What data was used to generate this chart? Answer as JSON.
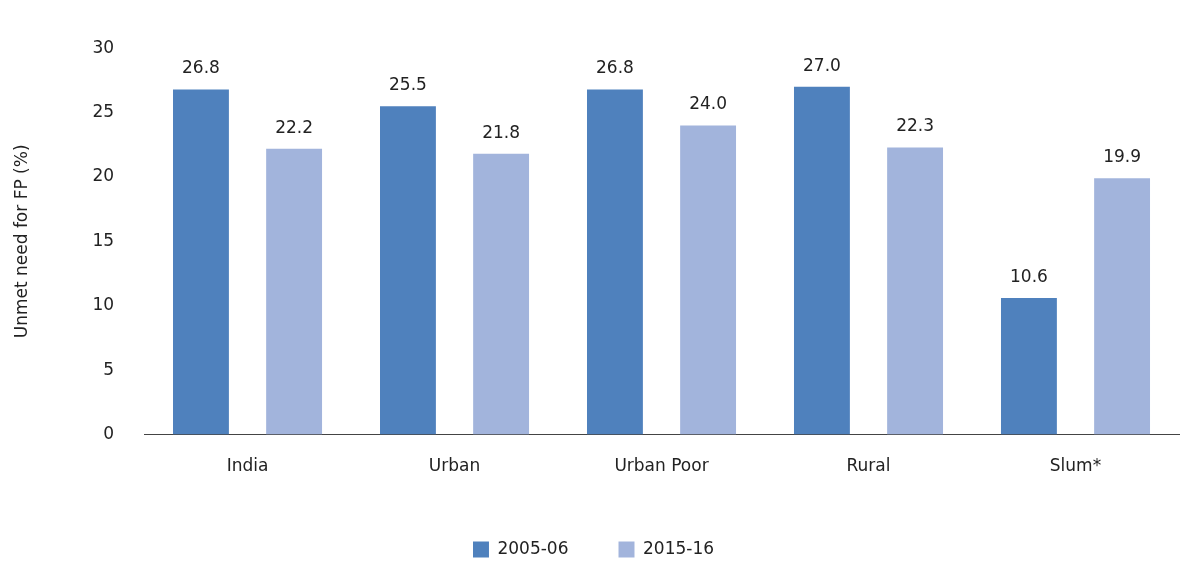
{
  "chart_data": {
    "type": "bar",
    "ylabel": "Unmet need for FP (%)",
    "categories": [
      "India",
      "Urban",
      "Urban Poor",
      "Rural",
      "Slum*"
    ],
    "series": [
      {
        "name": "2005-06",
        "color": "#4f81bd",
        "values": [
          26.8,
          25.5,
          26.8,
          27.0,
          10.6
        ],
        "value_labels": [
          "26.8",
          "25.5",
          "26.8",
          "27.0",
          "10.6"
        ]
      },
      {
        "name": "2015-16",
        "color": "#a2b4dc",
        "values": [
          22.2,
          21.8,
          24.0,
          22.3,
          19.9
        ],
        "value_labels": [
          "22.2",
          "21.8",
          "24.0",
          "22.3",
          "19.9"
        ]
      }
    ],
    "ylim": [
      0,
      30
    ],
    "yticks": [
      0,
      5,
      10,
      15,
      20,
      25,
      30
    ],
    "grid": false,
    "legend": "bottom"
  }
}
